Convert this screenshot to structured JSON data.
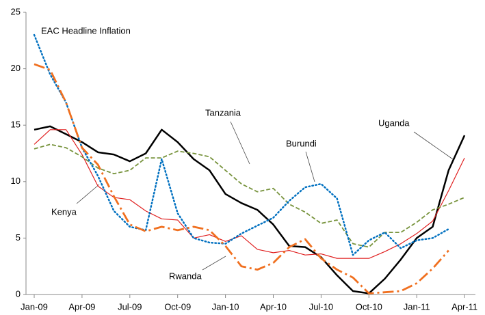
{
  "chart_data": {
    "type": "line",
    "title": "EAC Headline Inflation",
    "categories": [
      "Jan-09",
      null,
      null,
      "Apr-09",
      null,
      null,
      "Jul-09",
      null,
      null,
      "Oct-09",
      null,
      null,
      "Jan-10",
      null,
      null,
      "Apr-10",
      null,
      null,
      "Jul-10",
      null,
      null,
      "Oct-10",
      null,
      null,
      "Jan-11",
      null,
      null,
      "Apr-11"
    ],
    "ylim": [
      0,
      25
    ],
    "yticks": [
      0,
      5,
      10,
      15,
      20,
      25
    ],
    "grid": false,
    "series": [
      {
        "name": "Uganda",
        "color": "#000000",
        "values": [
          14.6,
          14.9,
          14.2,
          13.5,
          12.6,
          12.4,
          11.8,
          12.5,
          14.6,
          13.5,
          12.0,
          11.0,
          8.9,
          8.1,
          7.5,
          6.2,
          4.3,
          4.2,
          3.3,
          1.7,
          0.3,
          0.1,
          1.4,
          3.1,
          5.0,
          6.0,
          11.0,
          14.1
        ]
      },
      {
        "name": "Kenya",
        "color": "#e02020",
        "values": [
          13.3,
          14.6,
          14.6,
          12.4,
          9.6,
          8.6,
          8.4,
          7.4,
          6.7,
          6.6,
          5.0,
          5.3,
          4.7,
          5.2,
          4.0,
          3.7,
          3.9,
          3.5,
          3.6,
          3.2,
          3.2,
          3.2,
          3.8,
          4.5,
          5.4,
          6.5,
          9.2,
          12.1
        ]
      },
      {
        "name": "Tanzania",
        "color": "#77933c",
        "values": [
          12.9,
          13.3,
          13.0,
          12.2,
          11.2,
          10.7,
          11.0,
          12.1,
          12.1,
          12.7,
          12.5,
          12.2,
          11.0,
          9.8,
          9.1,
          9.4,
          8.0,
          7.3,
          6.3,
          6.6,
          4.5,
          4.2,
          5.5,
          5.5,
          6.4,
          7.5,
          8.0,
          8.6
        ]
      },
      {
        "name": "Burundi",
        "color": "#0070c0",
        "values": [
          23.0,
          19.5,
          17.0,
          13.0,
          10.5,
          7.4,
          6.0,
          5.7,
          12.0,
          7.2,
          5.0,
          4.6,
          4.5,
          5.4,
          6.1,
          6.8,
          8.3,
          9.5,
          9.8,
          8.5,
          3.5,
          4.8,
          5.5,
          4.1,
          4.8,
          5.0,
          5.8,
          null
        ]
      },
      {
        "name": "Rwanda",
        "color": "#f07020",
        "values": [
          20.4,
          19.9,
          17.0,
          13.0,
          11.5,
          8.7,
          6.2,
          5.6,
          6.0,
          5.7,
          6.0,
          5.7,
          4.3,
          2.5,
          2.2,
          2.8,
          4.2,
          4.9,
          3.2,
          2.2,
          1.5,
          0.1,
          0.2,
          0.3,
          1.0,
          2.3,
          3.9,
          null
        ]
      }
    ]
  }
}
